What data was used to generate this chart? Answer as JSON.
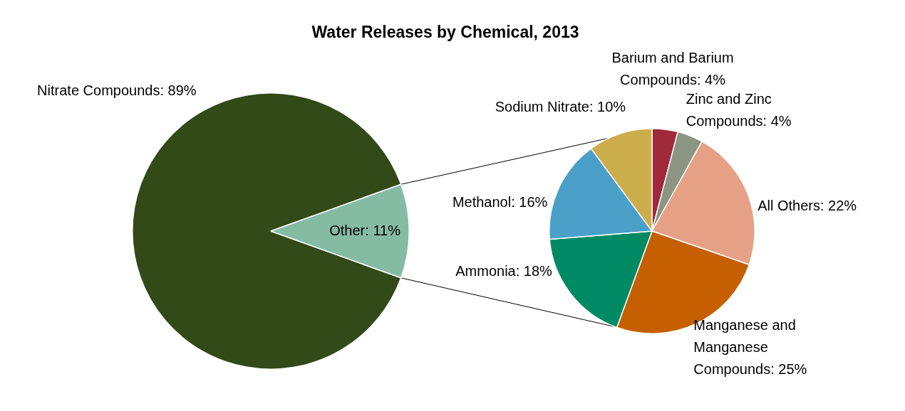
{
  "chart_data": [
    {
      "type": "pie",
      "title": "Water Releases by Chemical, 2013",
      "categories": [
        "Nitrate Compounds",
        "Other"
      ],
      "values": [
        89,
        11
      ],
      "colors": [
        "#314a18",
        "#86bba3"
      ],
      "value_labels": [
        "89%",
        "11%"
      ]
    },
    {
      "type": "pie",
      "categories": [
        "Barium and Barium Compounds",
        "Zinc and Zinc Compounds",
        "All Others",
        "Manganese and Manganese Compounds",
        "Ammonia",
        "Methanol",
        "Sodium Nitrate"
      ],
      "values": [
        4,
        4,
        22,
        25,
        18,
        16,
        10
      ],
      "colors": [
        "#a0293a",
        "#8c9482",
        "#e5a085",
        "#c55f00",
        "#008a63",
        "#4aa0c8",
        "#ccad4b"
      ],
      "value_labels": [
        "4%",
        "4%",
        "22%",
        "25%",
        "18%",
        "16%",
        "10%"
      ]
    }
  ]
}
